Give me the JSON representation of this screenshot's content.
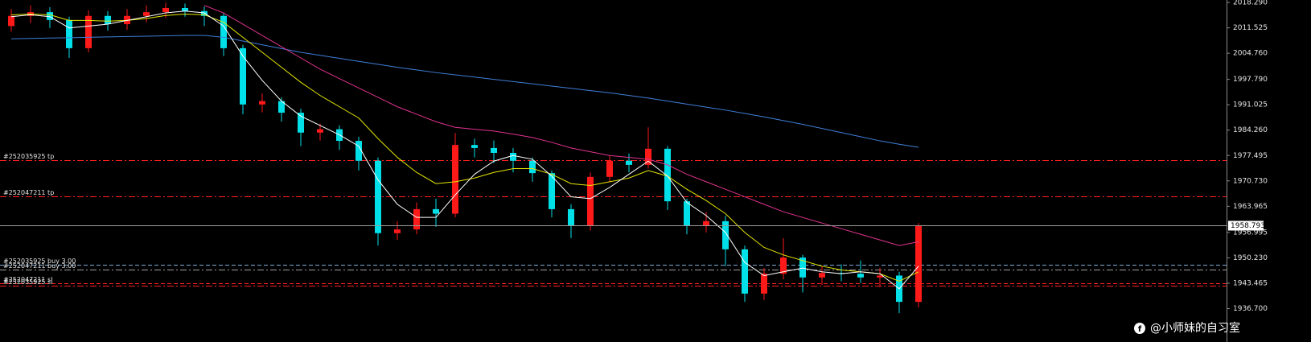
{
  "chart_data": {
    "type": "candlestick",
    "up_color": "#ff1a1a",
    "down_color": "#00e0e8",
    "open": [
      2012.0,
      2014.7,
      2015.7,
      2013.6,
      2006.1,
      2014.7,
      2012.5,
      2014.7,
      2015.7,
      2016.8,
      2016.0,
      2014.7,
      2006.1,
      1991.1,
      1992.0,
      1988.9,
      1983.6,
      1984.5,
      1981.4,
      1976.1,
      1956.8,
      1957.8,
      1963.2,
      1962.0,
      1980.3,
      1979.5,
      1978.2,
      1976.1,
      1972.8,
      1963.2,
      1958.9,
      1971.8,
      1976.1,
      1975.0,
      1979.3,
      1965.3,
      1958.9,
      1960.0,
      1952.5,
      1940.7,
      1946.0,
      1950.3,
      1945.0,
      1946.2,
      1946.0,
      1945.0,
      1945.5,
      1938.5
    ],
    "high": [
      2016.5,
      2017.5,
      2017.0,
      2014.5,
      2016.2,
      2016.0,
      2016.5,
      2017.5,
      2018.2,
      2018.0,
      2017.2,
      2015.5,
      2007.0,
      1994.0,
      1993.0,
      1990.0,
      1986.0,
      1985.5,
      1982.5,
      1977.0,
      1960.0,
      1965.0,
      1966.0,
      1983.5,
      1982.0,
      1981.5,
      1979.5,
      1977.0,
      1973.5,
      1964.5,
      1973.0,
      1977.5,
      1978.0,
      1985.0,
      1980.0,
      1966.0,
      1962.5,
      1961.5,
      1953.5,
      1947.5,
      1955.5,
      1951.0,
      1948.0,
      1948.5,
      1949.5,
      1947.5,
      1946.5,
      1959.5
    ],
    "low": [
      2010.5,
      2012.8,
      2011.5,
      2003.5,
      2005.0,
      2010.8,
      2011.0,
      2013.0,
      2014.2,
      2014.5,
      2012.0,
      2004.0,
      1988.5,
      1989.0,
      1986.5,
      1980.0,
      1981.5,
      1979.0,
      1973.5,
      1953.5,
      1955.0,
      1956.5,
      1958.5,
      1961.0,
      1977.0,
      1975.5,
      1973.0,
      1970.5,
      1961.0,
      1955.5,
      1957.5,
      1970.5,
      1973.0,
      1974.0,
      1963.0,
      1956.5,
      1957.0,
      1948.0,
      1938.5,
      1939.0,
      1944.5,
      1941.0,
      1943.0,
      1944.0,
      1943.5,
      1942.5,
      1935.5,
      1937.0
    ],
    "close": [
      2014.7,
      2015.7,
      2013.6,
      2006.1,
      2014.7,
      2012.5,
      2014.7,
      2015.7,
      2016.8,
      2016.0,
      2014.7,
      2006.1,
      1991.1,
      1992.0,
      1988.9,
      1983.6,
      1984.5,
      1981.4,
      1976.1,
      1956.8,
      1957.8,
      1963.2,
      1962.0,
      1980.3,
      1979.5,
      1978.2,
      1976.1,
      1972.8,
      1963.2,
      1958.9,
      1971.8,
      1976.1,
      1975.0,
      1979.3,
      1965.3,
      1958.9,
      1960.0,
      1952.5,
      1940.7,
      1946.0,
      1950.3,
      1945.0,
      1946.2,
      1946.0,
      1945.0,
      1945.5,
      1938.5,
      1958.8
    ],
    "series": [
      {
        "color": "#3f7fd8",
        "values": [
          2008.6,
          2008.7,
          2008.8,
          2008.9,
          2009.0,
          2009.1,
          2009.2,
          2009.3,
          2009.4,
          2009.5,
          2009.5,
          2009.0,
          2008.0,
          2007.0,
          2006.0,
          2005.0,
          2004.2,
          2003.4,
          2002.6,
          2001.8,
          2001.0,
          2000.3,
          1999.6,
          1999.0,
          1998.4,
          1997.8,
          1997.2,
          1996.6,
          1996.0,
          1995.4,
          1994.8,
          1994.2,
          1993.5,
          1992.8,
          1992.0,
          1991.2,
          1990.4,
          1989.6,
          1988.7,
          1987.8,
          1986.8,
          1985.8,
          1984.7,
          1983.6,
          1982.5,
          1981.4,
          1980.5,
          1979.7
        ]
      },
      {
        "color": "#e0338f",
        "values": [
          null,
          null,
          null,
          null,
          null,
          null,
          null,
          null,
          null,
          null,
          2017.5,
          2015.5,
          2012.5,
          2009.5,
          2006.5,
          2003.5,
          2000.5,
          1998.0,
          1995.5,
          1993.0,
          1990.5,
          1988.5,
          1986.5,
          1985.0,
          1984.5,
          1984.0,
          1983.2,
          1982.3,
          1981.0,
          1979.5,
          1978.5,
          1977.5,
          1977.0,
          1976.5,
          1975.0,
          1972.5,
          1970.5,
          1968.5,
          1966.5,
          1964.5,
          1962.5,
          1961.0,
          1959.5,
          1958.0,
          1956.5,
          1955.0,
          1953.5,
          1954.5
        ]
      },
      {
        "color": "#e6e600",
        "values": [
          2015.0,
          2015.2,
          2015.0,
          2013.5,
          2013.5,
          2013.3,
          2013.5,
          2014.0,
          2014.8,
          2015.2,
          2015.0,
          2013.0,
          2009.0,
          2005.0,
          2001.0,
          1997.0,
          1993.5,
          1990.5,
          1987.5,
          1982.0,
          1977.0,
          1973.0,
          1970.0,
          1970.5,
          1971.5,
          1973.0,
          1974.0,
          1974.0,
          1972.5,
          1970.0,
          1969.5,
          1970.5,
          1971.5,
          1973.5,
          1972.0,
          1968.5,
          1965.5,
          1962.0,
          1957.0,
          1953.0,
          1951.0,
          1949.5,
          1948.0,
          1947.0,
          1946.5,
          1946.0,
          1944.0,
          1946.5
        ]
      },
      {
        "color": "#ffffff",
        "values": [
          2014.5,
          2015.0,
          2014.5,
          2011.5,
          2012.0,
          2012.5,
          2013.5,
          2014.5,
          2015.5,
          2016.0,
          2015.5,
          2012.0,
          2004.0,
          1997.5,
          1992.0,
          1988.0,
          1985.5,
          1983.0,
          1980.0,
          1971.0,
          1964.5,
          1961.0,
          1961.0,
          1967.0,
          1972.5,
          1976.0,
          1977.5,
          1976.5,
          1972.0,
          1966.5,
          1966.0,
          1969.0,
          1972.5,
          1976.0,
          1972.0,
          1965.0,
          1961.5,
          1957.0,
          1949.0,
          1945.5,
          1946.5,
          1947.5,
          1946.5,
          1946.0,
          1946.5,
          1946.0,
          1942.0,
          1948.0
        ]
      }
    ],
    "ylim": [
      1927.8,
      2018.94
    ],
    "yticks": [
      {
        "value": 2018.29,
        "label": "2018.290"
      },
      {
        "value": 2011.525,
        "label": "2011.525"
      },
      {
        "value": 2004.76,
        "label": "2004.760"
      },
      {
        "value": 1997.79,
        "label": "1997.790"
      },
      {
        "value": 1991.025,
        "label": "1991.025"
      },
      {
        "value": 1984.26,
        "label": "1984.260"
      },
      {
        "value": 1977.495,
        "label": "1977.495"
      },
      {
        "value": 1970.73,
        "label": "1970.730"
      },
      {
        "value": 1963.965,
        "label": "1963.965"
      },
      {
        "value": 1956.995,
        "label": "1956.995"
      },
      {
        "value": 1950.23,
        "label": "1950.230"
      },
      {
        "value": 1943.465,
        "label": "1943.465"
      },
      {
        "value": 1936.7,
        "label": "1936.700"
      }
    ],
    "order_lines": [
      {
        "label": "#252035925 tp",
        "value": 1976.3,
        "color": "#ff2020",
        "dash": "dashdot"
      },
      {
        "label": "#252047211 tp",
        "value": 1966.6,
        "color": "#ff2020",
        "dash": "dashdot"
      },
      {
        "label": "#252035925 buy 3.00",
        "value": 1948.4,
        "color": "#7fa8d8",
        "dash": "dash"
      },
      {
        "label": "#252047211 buy 3.00",
        "value": 1947.1,
        "color": "#a0a0a0",
        "dash": "dashdot"
      },
      {
        "label": "#252047211 sl",
        "value": 1943.5,
        "color": "#ff2020",
        "dash": "dash"
      },
      {
        "label": "#252035925 sl",
        "value": 1942.8,
        "color": "#ff2020",
        "dash": "dashdot"
      }
    ],
    "current_price": 1958.793,
    "current_price_color": "#9a9a9a",
    "watermark": "@小师妹的自习室"
  }
}
